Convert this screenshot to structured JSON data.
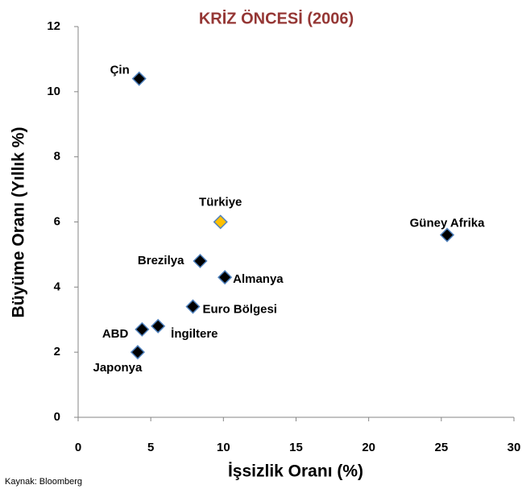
{
  "chart_data": {
    "type": "scatter",
    "title": "KRİZ ÖNCESİ (2006)",
    "xlabel": "İşsizlik Oranı (%)",
    "ylabel": "Büyüme Oranı (Yıllık %)",
    "source": "Kaynak: Bloomberg",
    "labels": [
      "Çin",
      "Türkiye",
      "Güney Afrika",
      "Brezilya",
      "Almanya",
      "Euro Bölgesi",
      "ABD",
      "İngiltere",
      "Japonya"
    ],
    "x": [
      4.2,
      9.8,
      25.4,
      8.4,
      10.1,
      7.9,
      4.4,
      5.5,
      4.1
    ],
    "values": [
      10.4,
      6.0,
      5.6,
      4.8,
      4.3,
      3.4,
      2.7,
      2.8,
      2.0
    ],
    "colors": [
      "#000000",
      "#ffc000",
      "#000000",
      "#000000",
      "#000000",
      "#000000",
      "#000000",
      "#000000",
      "#000000"
    ],
    "edge_color": "#4f81bd",
    "xlim": [
      0,
      30
    ],
    "xticks": [
      0,
      5,
      10,
      15,
      20,
      25,
      30
    ],
    "ylim": [
      0,
      12
    ],
    "yticks": [
      0,
      2,
      4,
      6,
      8,
      10,
      12
    ]
  }
}
